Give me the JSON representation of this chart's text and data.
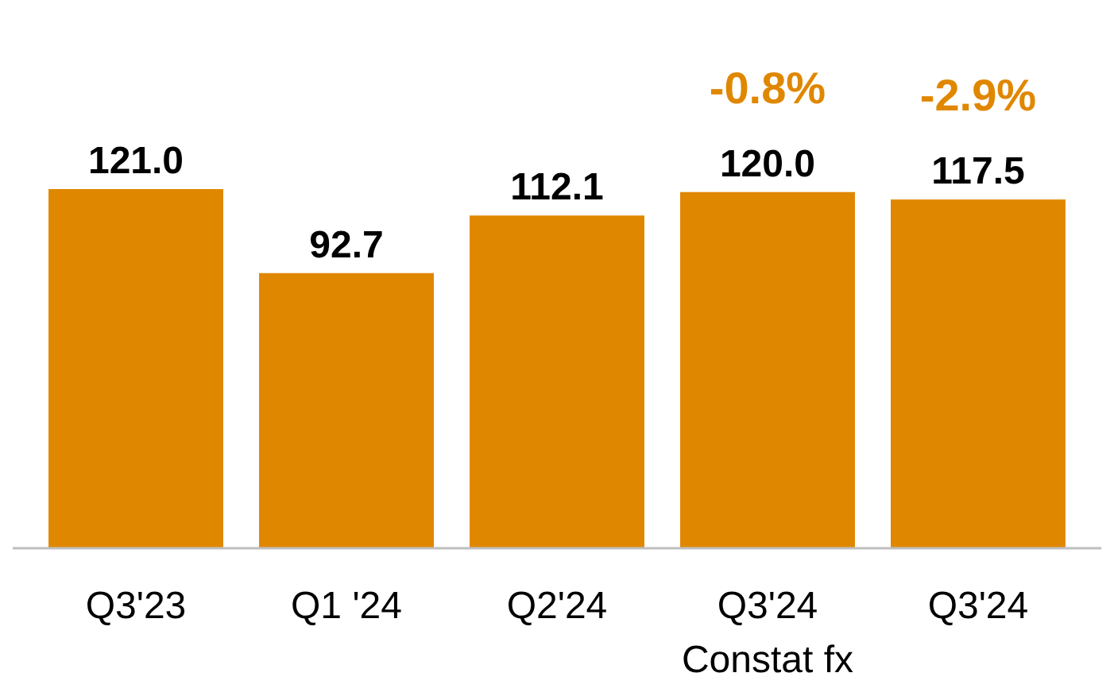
{
  "chart_data": {
    "type": "bar",
    "categories": [
      "Q3'23",
      "Q1 '24",
      "Q2'24",
      "Q3'24\nConstat fx",
      "Q3'24"
    ],
    "values": [
      121.0,
      92.7,
      112.1,
      120.0,
      117.5
    ],
    "color": "#e08700",
    "value_labels": [
      "121.0",
      "92.7",
      "112.1",
      "120.0",
      "117.5"
    ],
    "annotations": [
      {
        "text": "-0.8%",
        "x": "Q3'24\nConstat fx",
        "y": 120.0
      },
      {
        "text": "-2.9%",
        "x": "Q3'24",
        "y": 117.5
      }
    ]
  }
}
